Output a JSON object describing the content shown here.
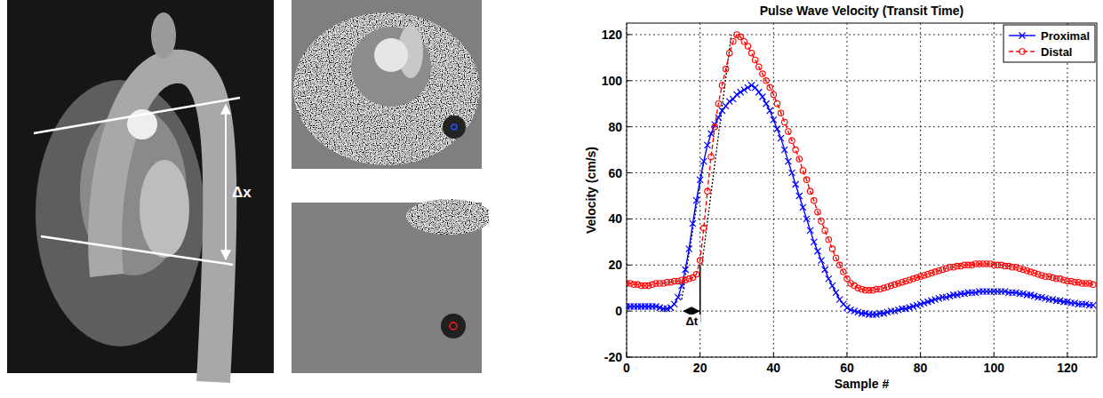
{
  "chart_data": {
    "type": "line",
    "title": "Pulse Wave Velocity (Transit Time)",
    "x_label": "Sample #",
    "y_label": "Velocity (cm/s)",
    "x": [
      0,
      1,
      2,
      3,
      4,
      5,
      6,
      7,
      8,
      9,
      10,
      11,
      12,
      13,
      14,
      15,
      16,
      17,
      18,
      19,
      20,
      21,
      22,
      23,
      24,
      25,
      26,
      27,
      28,
      29,
      30,
      31,
      32,
      33,
      34,
      35,
      36,
      37,
      38,
      39,
      40,
      41,
      42,
      43,
      44,
      45,
      46,
      47,
      48,
      49,
      50,
      51,
      52,
      53,
      54,
      55,
      56,
      57,
      58,
      59,
      60,
      61,
      62,
      63,
      64,
      65,
      66,
      67,
      68,
      69,
      70,
      71,
      72,
      73,
      74,
      75,
      76,
      77,
      78,
      79,
      80,
      81,
      82,
      83,
      84,
      85,
      86,
      87,
      88,
      89,
      90,
      91,
      92,
      93,
      94,
      95,
      96,
      97,
      98,
      99,
      100,
      101,
      102,
      103,
      104,
      105,
      106,
      107,
      108,
      109,
      110,
      111,
      112,
      113,
      114,
      115,
      116,
      117,
      118,
      119,
      120,
      121,
      122,
      123,
      124,
      125,
      126,
      127
    ],
    "series": [
      {
        "name": "Proximal",
        "color": "#0000ff",
        "marker": "x",
        "line_style": "solid",
        "values": [
          2,
          2,
          2,
          2,
          2,
          2,
          2,
          2,
          2,
          1.5,
          1,
          1,
          1.5,
          3,
          6,
          11,
          18,
          27,
          38,
          48,
          57,
          65,
          72,
          77,
          81,
          84,
          87,
          89,
          91,
          92,
          94,
          95,
          96,
          97,
          98,
          97,
          95,
          93,
          90,
          87,
          83,
          79,
          75,
          70,
          65,
          60,
          55,
          50,
          45,
          40,
          35,
          30,
          26,
          22,
          18,
          14,
          11,
          8,
          5,
          3,
          1.5,
          0.5,
          0,
          -0.5,
          -1,
          -1,
          -1.5,
          -1.5,
          -1.5,
          -1,
          -1,
          -0.5,
          0,
          0,
          0.5,
          1,
          1,
          1.5,
          2,
          2.5,
          3,
          3.5,
          4,
          4.5,
          5,
          5.5,
          6,
          6,
          6.5,
          7,
          7,
          7.5,
          7.5,
          8,
          8,
          8,
          8.5,
          8.5,
          8.5,
          8.5,
          8.5,
          8.5,
          8.5,
          8.5,
          8,
          8,
          8,
          7.5,
          7.5,
          7,
          7,
          6.5,
          6,
          6,
          5.5,
          5,
          5,
          4.5,
          4.5,
          4,
          4,
          3.5,
          3.5,
          3,
          3,
          3,
          2.5,
          2.5
        ]
      },
      {
        "name": "Distal",
        "color": "#ff0000",
        "marker": "circle",
        "line_style": "dashed",
        "values": [
          12,
          12,
          11.5,
          11.5,
          11,
          11,
          11,
          11.5,
          12,
          12,
          12,
          12.5,
          12.5,
          13,
          13,
          13.5,
          13.5,
          14,
          14.5,
          16,
          22,
          36,
          52,
          67,
          80,
          90,
          98,
          105,
          112,
          117,
          120,
          119,
          117,
          115,
          112,
          109,
          106,
          103,
          100,
          97,
          94,
          90,
          86,
          82,
          78,
          74,
          70,
          66,
          61,
          57,
          52,
          48,
          43,
          39,
          35,
          31,
          27,
          23,
          20,
          17,
          14,
          12,
          11,
          10,
          9.5,
          9,
          9,
          9,
          9.5,
          9.5,
          10,
          10.5,
          11,
          11.5,
          12,
          12.5,
          13,
          13.5,
          14,
          14.5,
          15,
          15.5,
          16,
          16.5,
          17,
          17.5,
          18,
          18.5,
          19,
          19,
          19.5,
          19.5,
          20,
          20,
          20,
          20.5,
          20.5,
          20.5,
          20.5,
          20.5,
          20,
          20,
          20,
          19.5,
          19.5,
          19,
          19,
          18.5,
          18,
          17.5,
          17,
          16.5,
          16,
          15.5,
          15,
          15,
          14.5,
          14,
          14,
          13.5,
          13,
          13,
          12.5,
          12.5,
          12,
          12,
          12,
          11.5
        ]
      }
    ],
    "xlim": [
      0,
      128
    ],
    "xticks": [
      0,
      20,
      40,
      60,
      80,
      100,
      120
    ],
    "ylim": [
      -20,
      125
    ],
    "yticks": [
      -20,
      0,
      20,
      40,
      60,
      80,
      100,
      120
    ],
    "grid": true,
    "legend": "upper right",
    "annotations": [
      {
        "text": "Δt",
        "x": [
          15.5,
          20
        ],
        "y": 0,
        "line_y": [
          -5,
          20
        ]
      }
    ],
    "tangent_lines": [
      {
        "x": [
          15,
          21
        ],
        "y": [
          5,
          65
        ]
      },
      {
        "x": [
          20.5,
          28.5
        ],
        "y": [
          20,
          120
        ]
      }
    ]
  },
  "image_labels": [
    "Δx"
  ]
}
